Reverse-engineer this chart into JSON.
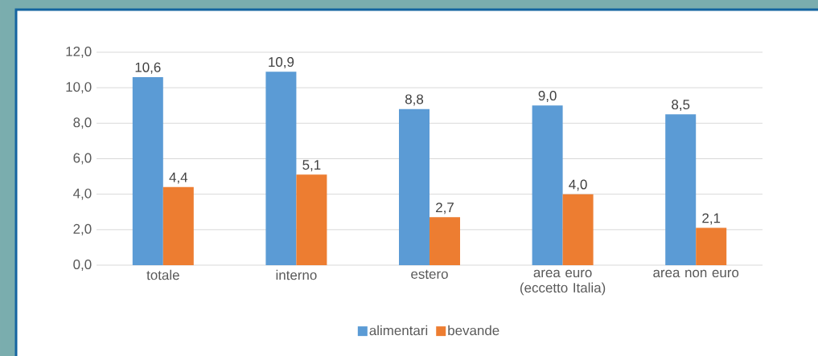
{
  "chart_data": {
    "type": "bar",
    "categories": [
      "totale",
      "interno",
      "estero",
      "area euro (eccetto Italia)",
      "area non euro"
    ],
    "series": [
      {
        "name": "alimentari",
        "color": "#5b9bd5",
        "values": [
          10.6,
          10.9,
          8.8,
          9.0,
          8.5
        ],
        "value_labels": [
          "10,6",
          "10,9",
          "8,8",
          "9,0",
          "8,5"
        ]
      },
      {
        "name": "bevande",
        "color": "#ed7d31",
        "values": [
          4.4,
          5.1,
          2.7,
          4.0,
          2.1
        ],
        "value_labels": [
          "4,4",
          "5,1",
          "2,7",
          "4,0",
          "2,1"
        ]
      }
    ],
    "ylim": [
      0,
      12
    ],
    "yticks": [
      {
        "value": 0,
        "label": "0,0"
      },
      {
        "value": 2,
        "label": "2,0"
      },
      {
        "value": 4,
        "label": "4,0"
      },
      {
        "value": 6,
        "label": "6,0"
      },
      {
        "value": 8,
        "label": "8,0"
      },
      {
        "value": 10,
        "label": "10,0"
      },
      {
        "value": 12,
        "label": "12,0"
      }
    ],
    "grid": "y",
    "legend": "bottom"
  }
}
